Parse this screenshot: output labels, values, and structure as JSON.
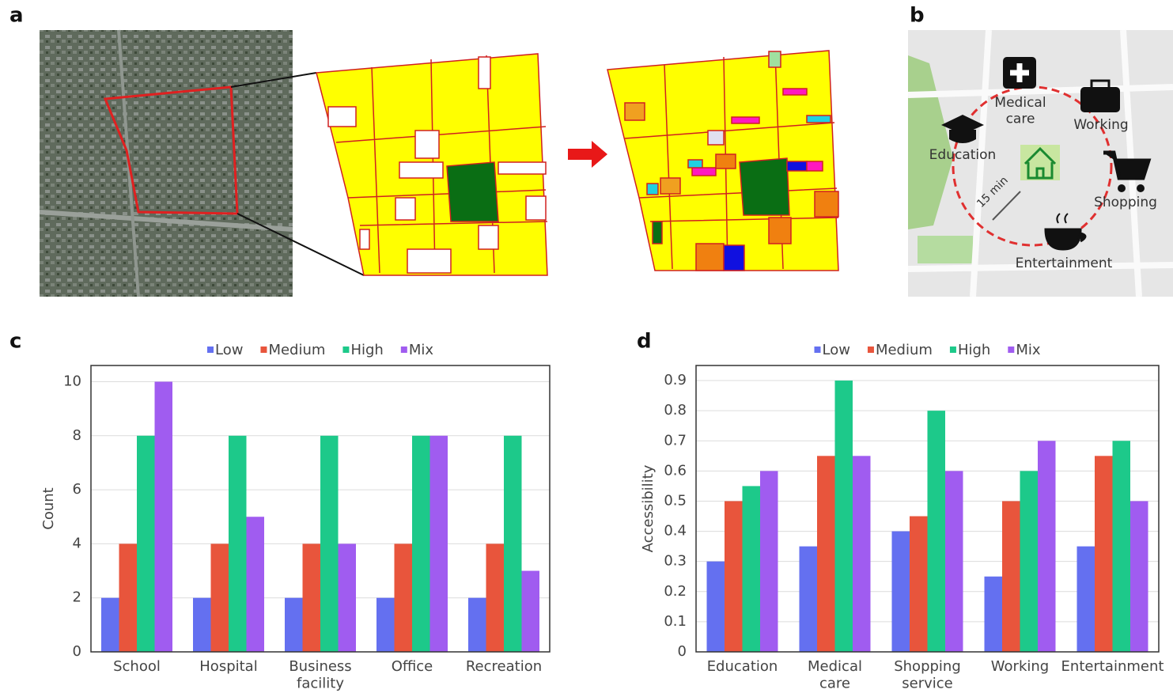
{
  "panels": [
    "a",
    "b",
    "c",
    "d"
  ],
  "map_labels": {
    "medical": "Medical care",
    "working": "Working",
    "education": "Education",
    "shopping": "Shopping",
    "entertainment": "Entertainment",
    "distance": "15 min"
  },
  "chart_data": [
    {
      "type": "bar",
      "ylabel": "Count",
      "categories": [
        "School",
        "Hospital",
        "Business facility",
        "Office",
        "Recreation"
      ],
      "series": [
        {
          "name": "Low",
          "color": "#6470f0",
          "values": [
            2,
            2,
            2,
            2,
            2
          ]
        },
        {
          "name": "Medium",
          "color": "#e8553c",
          "values": [
            4,
            4,
            4,
            4,
            4
          ]
        },
        {
          "name": "High",
          "color": "#1dc98a",
          "values": [
            8,
            8,
            8,
            8,
            8
          ]
        },
        {
          "name": "Mix",
          "color": "#a05cf0",
          "values": [
            10,
            5,
            4,
            8,
            3
          ]
        }
      ],
      "ylim": [
        0,
        10.6
      ],
      "yticks": [
        0,
        2,
        4,
        6,
        8,
        10
      ],
      "grid": true,
      "legend": "top"
    },
    {
      "type": "bar",
      "ylabel": "Accessibility",
      "categories": [
        "Education",
        "Medical care",
        "Shopping service",
        "Working",
        "Entertainment"
      ],
      "series": [
        {
          "name": "Low",
          "color": "#6470f0",
          "values": [
            0.3,
            0.35,
            0.4,
            0.25,
            0.35
          ]
        },
        {
          "name": "Medium",
          "color": "#e8553c",
          "values": [
            0.5,
            0.65,
            0.45,
            0.5,
            0.65
          ]
        },
        {
          "name": "High",
          "color": "#1dc98a",
          "values": [
            0.55,
            0.9,
            0.8,
            0.6,
            0.7
          ]
        },
        {
          "name": "Mix",
          "color": "#a05cf0",
          "values": [
            0.6,
            0.65,
            0.6,
            0.7,
            0.5
          ]
        }
      ],
      "ylim": [
        0,
        0.95
      ],
      "yticks": [
        0,
        0.1,
        0.2,
        0.3,
        0.4,
        0.5,
        0.6,
        0.7,
        0.8,
        0.9
      ],
      "grid": true,
      "legend": "top"
    }
  ]
}
